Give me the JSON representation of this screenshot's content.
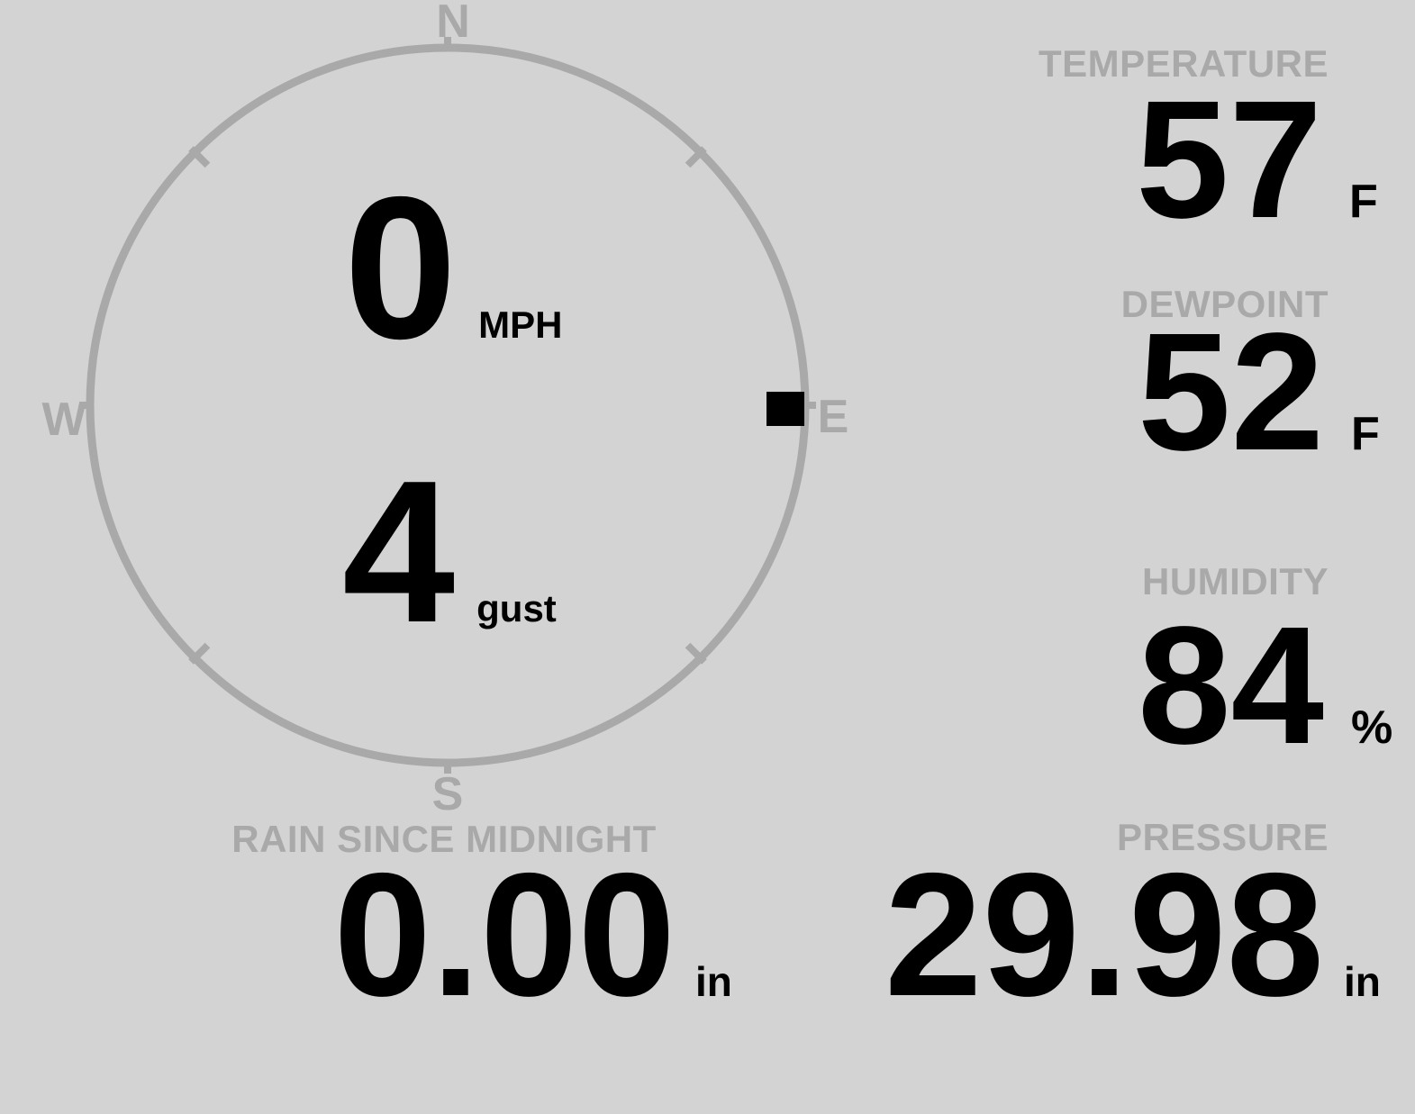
{
  "wind": {
    "speed_value": "0",
    "speed_unit": "MPH",
    "gust_value": "4",
    "gust_unit": "gust",
    "direction": "E",
    "direction_deg": 90
  },
  "compass": {
    "labels": {
      "north": "N",
      "east": "E",
      "south": "S",
      "west": "W"
    }
  },
  "metrics": {
    "temperature": {
      "label": "TEMPERATURE",
      "value": "57",
      "unit": "F"
    },
    "dewpoint": {
      "label": "DEWPOINT",
      "value": "52",
      "unit": "F"
    },
    "humidity": {
      "label": "HUMIDITY",
      "value": "84",
      "unit": "%"
    },
    "rain": {
      "label": "RAIN SINCE MIDNIGHT",
      "value": "0.00",
      "unit": "in"
    },
    "pressure": {
      "label": "PRESSURE",
      "value": "29.98",
      "unit": "in"
    }
  },
  "colors": {
    "background": "#d3d3d3",
    "muted": "#a9a9a9",
    "value": "#000000"
  }
}
